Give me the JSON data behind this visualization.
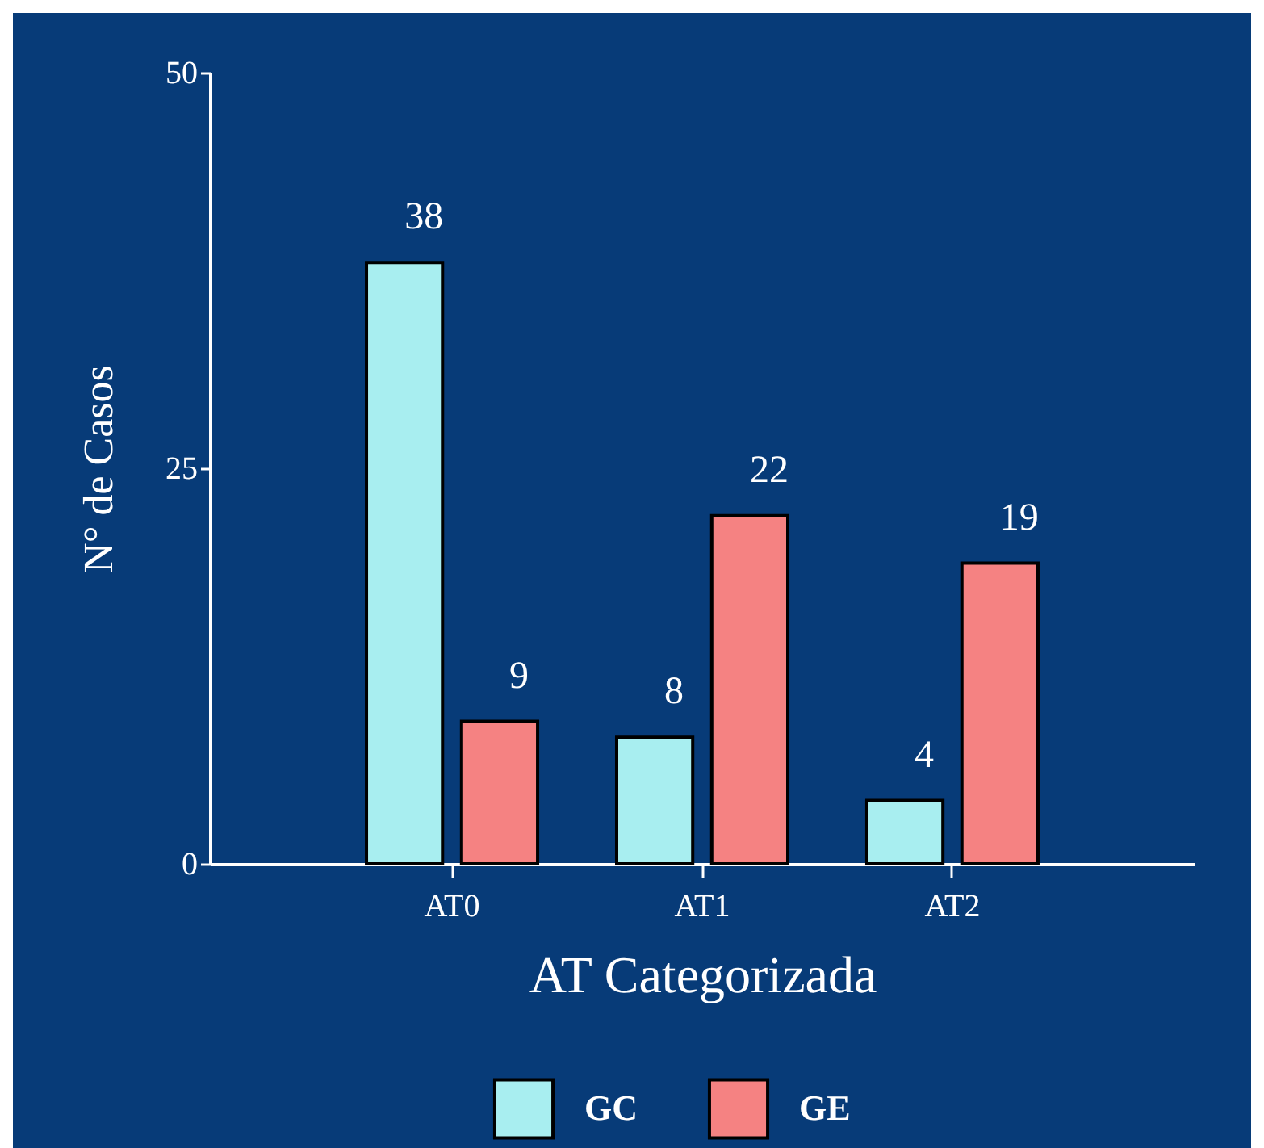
{
  "chart_data": {
    "type": "bar",
    "xlabel": "AT Categorizada",
    "ylabel": "N° de Casos",
    "categories": [
      "AT0",
      "AT1",
      "AT2"
    ],
    "series": [
      {
        "name": "GC",
        "color": "#a8eef0",
        "values": [
          38,
          8,
          4
        ]
      },
      {
        "name": "GE",
        "color": "#f58282",
        "values": [
          9,
          22,
          19
        ]
      }
    ],
    "ylim": [
      0,
      50
    ],
    "yticks": [
      0,
      25,
      50
    ],
    "grid": false,
    "legend": "bottom",
    "data_labels": true
  }
}
